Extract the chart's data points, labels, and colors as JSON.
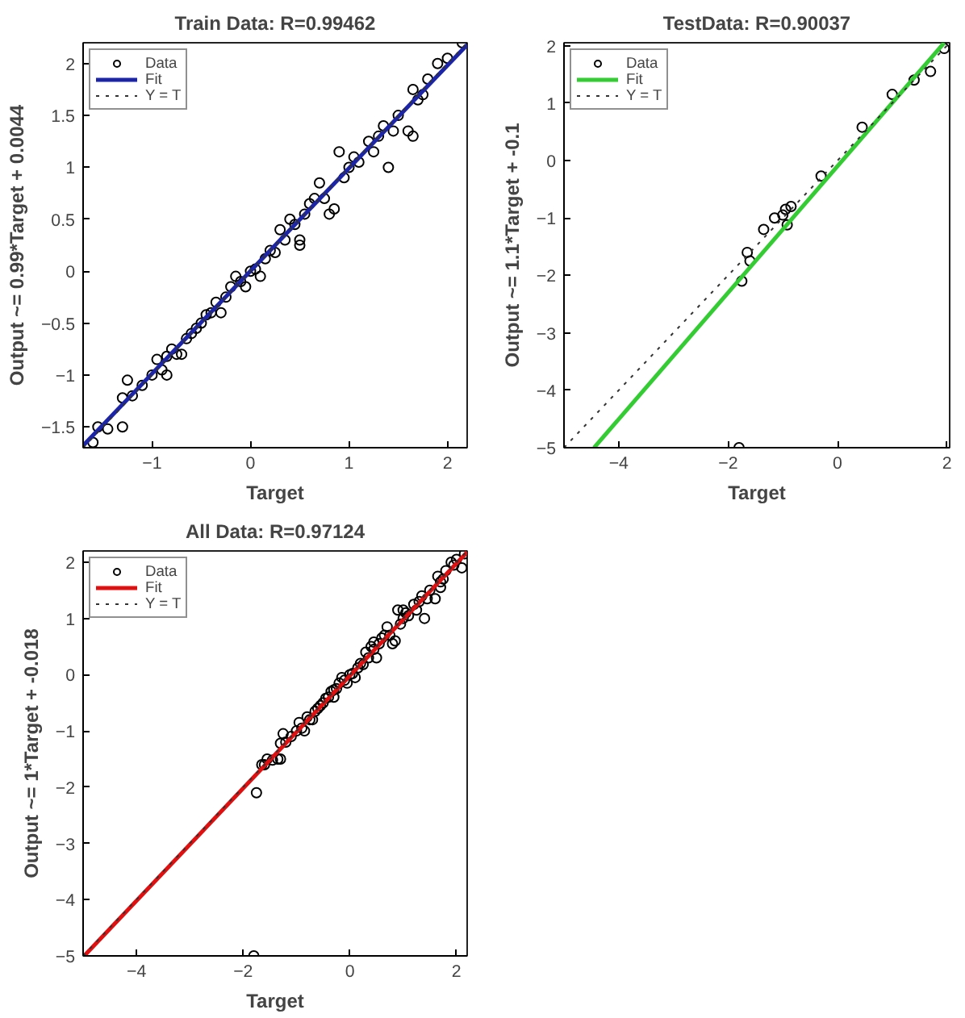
{
  "chart_data": [
    {
      "type": "scatter",
      "title": "Train Data: R=0.99462",
      "xlabel": "Target",
      "ylabel": "Output ~= 0.99*Target + 0.0044",
      "xlim": [
        -1.7,
        2.2
      ],
      "ylim": [
        -1.7,
        2.2
      ],
      "xticks": [
        -1,
        0,
        1,
        2
      ],
      "yticks": [
        -1.5,
        -1,
        -0.5,
        0,
        0.5,
        1,
        1.5,
        2
      ],
      "grid": false,
      "legend": "top left",
      "series": [
        {
          "name": "Data",
          "marker": "circle",
          "color": "#000000",
          "x": [
            -1.6,
            -1.55,
            -1.45,
            -1.3,
            -1.3,
            -1.25,
            -1.2,
            -1.1,
            -1.0,
            -0.95,
            -0.9,
            -0.85,
            -0.8,
            -0.75,
            -0.7,
            -0.65,
            -0.6,
            -0.55,
            -0.5,
            -0.45,
            -0.4,
            -0.35,
            -0.3,
            -0.25,
            -0.2,
            -0.15,
            -0.1,
            -0.05,
            0,
            0.05,
            0.1,
            0.15,
            0.2,
            0.25,
            0.3,
            0.35,
            0.4,
            0.45,
            0.5,
            0.55,
            0.6,
            0.65,
            0.7,
            0.75,
            0.8,
            0.85,
            0.9,
            0.95,
            1.0,
            1.05,
            1.1,
            1.2,
            1.25,
            1.3,
            1.35,
            1.4,
            1.45,
            1.5,
            1.6,
            1.65,
            1.7,
            1.75,
            1.8,
            1.9,
            2.0,
            2.15,
            0.5,
            -0.85,
            1.65
          ],
          "values": [
            -1.65,
            -1.5,
            -1.52,
            -1.5,
            -1.22,
            -1.05,
            -1.2,
            -1.1,
            -1.0,
            -0.85,
            -0.95,
            -1.0,
            -0.75,
            -0.8,
            -0.8,
            -0.65,
            -0.6,
            -0.55,
            -0.5,
            -0.42,
            -0.4,
            -0.3,
            -0.4,
            -0.25,
            -0.15,
            -0.05,
            -0.1,
            -0.15,
            0,
            0.02,
            -0.05,
            0.12,
            0.2,
            0.18,
            0.4,
            0.3,
            0.5,
            0.45,
            0.3,
            0.55,
            0.65,
            0.7,
            0.85,
            0.7,
            0.55,
            0.6,
            1.15,
            0.9,
            1.0,
            1.1,
            1.05,
            1.25,
            1.15,
            1.3,
            1.4,
            1.0,
            1.35,
            1.5,
            1.35,
            1.75,
            1.65,
            1.7,
            1.85,
            2.0,
            2.05,
            2.2,
            0.25,
            -0.82,
            1.3
          ]
        },
        {
          "name": "Fit",
          "type": "line",
          "line_style": "solid",
          "color": "#1c24a8",
          "x": [
            -1.7,
            2.2
          ],
          "values": [
            -1.68,
            2.18
          ]
        },
        {
          "name": "Y = T",
          "type": "line",
          "line_style": "dotted",
          "color": "#333333",
          "x": [
            -1.7,
            2.2
          ],
          "values": [
            -1.7,
            2.2
          ]
        }
      ]
    },
    {
      "type": "scatter",
      "title": "TestData: R=0.90037",
      "xlabel": "Target",
      "ylabel": "Output ~= 1.1*Target + -0.1",
      "xlim": [
        -5,
        2.05
      ],
      "ylim": [
        -5,
        2.05
      ],
      "xticks": [
        -4,
        -2,
        0,
        2
      ],
      "yticks": [
        -5,
        -4,
        -3,
        -2,
        -1,
        0,
        1,
        2
      ],
      "grid": false,
      "legend": "top left",
      "series": [
        {
          "name": "Data",
          "marker": "circle",
          "color": "#000000",
          "x": [
            -1.75,
            -1.65,
            -1.6,
            -1.35,
            -1.15,
            -1.0,
            -0.95,
            -0.92,
            -0.85,
            -0.3,
            0.45,
            1.0,
            1.4,
            1.7,
            1.95,
            -1.8
          ],
          "values": [
            -2.1,
            -1.6,
            -1.75,
            -1.2,
            -1.0,
            -0.95,
            -0.85,
            -1.12,
            -0.8,
            -0.27,
            0.58,
            1.15,
            1.4,
            1.55,
            1.95,
            -5.0
          ]
        },
        {
          "name": "Fit",
          "type": "line",
          "line_style": "solid",
          "color": "#33cc33",
          "x": [
            -4.45,
            1.95
          ],
          "values": [
            -5.0,
            2.05
          ]
        },
        {
          "name": "Y = T",
          "type": "line",
          "line_style": "dotted",
          "color": "#333333",
          "x": [
            -5,
            2.05
          ],
          "values": [
            -5,
            2.05
          ]
        }
      ]
    },
    {
      "type": "scatter",
      "title": "All Data: R=0.97124",
      "xlabel": "Target",
      "ylabel": "Output ~= 1*Target + -0.018",
      "xlim": [
        -5,
        2.2
      ],
      "ylim": [
        -5,
        2.2
      ],
      "xticks": [
        -4,
        -2,
        0,
        2
      ],
      "yticks": [
        -5,
        -4,
        -3,
        -2,
        -1,
        0,
        1,
        2
      ],
      "grid": false,
      "legend": "top left",
      "series": [
        {
          "name": "Data",
          "marker": "circle",
          "color": "#000000",
          "x": [
            -1.6,
            -1.55,
            -1.45,
            -1.3,
            -1.3,
            -1.25,
            -1.2,
            -1.1,
            -1.0,
            -0.95,
            -0.9,
            -0.85,
            -0.8,
            -0.75,
            -0.7,
            -0.65,
            -0.6,
            -0.55,
            -0.5,
            -0.45,
            -0.4,
            -0.35,
            -0.3,
            -0.25,
            -0.2,
            -0.15,
            -0.1,
            -0.05,
            0,
            0.05,
            0.1,
            0.15,
            0.2,
            0.25,
            0.3,
            0.35,
            0.4,
            0.45,
            0.5,
            0.55,
            0.6,
            0.65,
            0.7,
            0.75,
            0.8,
            0.85,
            0.9,
            0.95,
            1.0,
            1.05,
            1.1,
            1.2,
            1.25,
            1.3,
            1.35,
            1.4,
            1.45,
            1.5,
            1.6,
            1.65,
            1.7,
            1.75,
            1.8,
            1.9,
            2.0,
            2.15,
            -1.75,
            -1.65,
            -1.35,
            -0.3,
            0.45,
            1.0,
            1.7,
            1.95,
            -1.8,
            2.1
          ],
          "values": [
            -1.6,
            -1.5,
            -1.52,
            -1.5,
            -1.22,
            -1.05,
            -1.2,
            -1.1,
            -1.0,
            -0.85,
            -0.95,
            -1.0,
            -0.75,
            -0.8,
            -0.8,
            -0.65,
            -0.6,
            -0.55,
            -0.5,
            -0.42,
            -0.4,
            -0.3,
            -0.4,
            -0.25,
            -0.15,
            -0.05,
            -0.1,
            -0.15,
            0,
            0.02,
            -0.05,
            0.12,
            0.2,
            0.18,
            0.4,
            0.3,
            0.5,
            0.45,
            0.3,
            0.55,
            0.65,
            0.7,
            0.85,
            0.7,
            0.55,
            0.6,
            1.15,
            0.9,
            1.0,
            1.1,
            1.05,
            1.25,
            1.15,
            1.3,
            1.4,
            1.0,
            1.35,
            1.5,
            1.35,
            1.75,
            1.65,
            1.7,
            1.85,
            2.0,
            2.05,
            2.15,
            -2.1,
            -1.6,
            -1.5,
            -0.27,
            0.58,
            1.15,
            1.55,
            1.95,
            -5.0,
            1.9
          ]
        },
        {
          "name": "Fit",
          "type": "line",
          "line_style": "solid",
          "color": "#e01010",
          "x": [
            -4.98,
            2.2
          ],
          "values": [
            -5.0,
            2.18
          ]
        },
        {
          "name": "Y = T",
          "type": "line",
          "line_style": "dotted",
          "color": "#333333",
          "x": [
            -5,
            2.2
          ],
          "values": [
            -5,
            2.2
          ]
        }
      ]
    }
  ]
}
